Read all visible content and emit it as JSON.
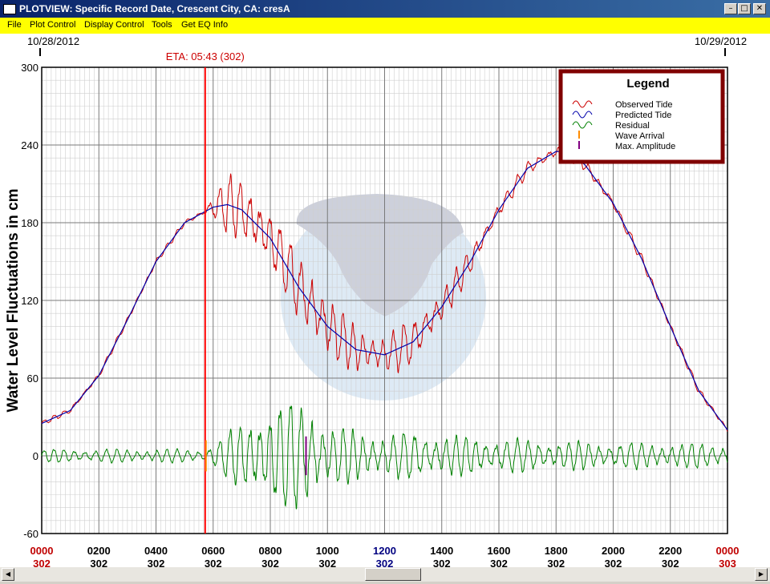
{
  "window": {
    "title": "PLOTVIEW: Specific Record Date, Crescent City, CA: cresA"
  },
  "menu": {
    "items": [
      "File",
      "Plot Control",
      "Display Control",
      "Tools",
      "Get EQ Info"
    ]
  },
  "chart_data": {
    "type": "line",
    "title": "",
    "ylabel": "Water Level Fluctuations in cm",
    "ylim": [
      -60,
      300
    ],
    "yticks": [
      -60,
      0,
      60,
      120,
      180,
      240,
      300
    ],
    "xlim": [
      0,
      24
    ],
    "xticks": [
      {
        "hour": 0,
        "time": "0000",
        "day": "302",
        "color": "#c00000"
      },
      {
        "hour": 2,
        "time": "0200",
        "day": "302",
        "color": "#000000"
      },
      {
        "hour": 4,
        "time": "0400",
        "day": "302",
        "color": "#000000"
      },
      {
        "hour": 6,
        "time": "0600",
        "day": "302",
        "color": "#000000"
      },
      {
        "hour": 8,
        "time": "0800",
        "day": "302",
        "color": "#000000"
      },
      {
        "hour": 10,
        "time": "1000",
        "day": "302",
        "color": "#000000"
      },
      {
        "hour": 12,
        "time": "1200",
        "day": "302",
        "color": "#000080"
      },
      {
        "hour": 14,
        "time": "1400",
        "day": "302",
        "color": "#000000"
      },
      {
        "hour": 16,
        "time": "1600",
        "day": "302",
        "color": "#000000"
      },
      {
        "hour": 18,
        "time": "1800",
        "day": "302",
        "color": "#000000"
      },
      {
        "hour": 20,
        "time": "2000",
        "day": "302",
        "color": "#000000"
      },
      {
        "hour": 22,
        "time": "2200",
        "day": "302",
        "color": "#000000"
      },
      {
        "hour": 24,
        "time": "0000",
        "day": "303",
        "color": "#c00000"
      }
    ],
    "date_start": "10/28/2012",
    "date_end": "10/29/2012",
    "eta": {
      "label": "ETA: 05:43 (302)",
      "hour": 5.72
    },
    "wave_arrival_hour": 5.72,
    "max_amplitude": {
      "hour": 9.25,
      "ymin": -15,
      "ymax": 15
    },
    "grid": true,
    "legend": {
      "title": "Legend",
      "position": "top-right",
      "entries": [
        {
          "label": "Observed Tide",
          "color": "#cc0000",
          "kind": "wave"
        },
        {
          "label": "Predicted Tide",
          "color": "#0000aa",
          "kind": "wave"
        },
        {
          "label": "Residual",
          "color": "#008000",
          "kind": "wave"
        },
        {
          "label": "Wave Arrival",
          "color": "#ff8c00",
          "kind": "tick"
        },
        {
          "label": "Max. Amplitude",
          "color": "#800080",
          "kind": "tick"
        }
      ]
    },
    "predicted_tide": {
      "name": "Predicted Tide",
      "x": [
        0,
        1,
        2,
        3,
        4,
        5,
        6,
        6.5,
        7,
        8,
        9,
        10,
        11,
        12,
        13,
        14,
        15,
        16,
        17,
        18,
        18.3,
        19,
        20,
        21,
        22,
        23,
        24
      ],
      "y": [
        25,
        35,
        62,
        105,
        150,
        180,
        192,
        194,
        190,
        168,
        130,
        100,
        82,
        78,
        88,
        115,
        150,
        190,
        222,
        235,
        235,
        225,
        195,
        152,
        100,
        50,
        20
      ]
    },
    "observed_envelope": {
      "name": "Observed Tide",
      "x": [
        0,
        5.7,
        6.5,
        7.5,
        8.5,
        9.5,
        10.5,
        11.5,
        12.5,
        13.5,
        14.5,
        15.5,
        17,
        20,
        22,
        24
      ],
      "amplitude": [
        2,
        2,
        22,
        25,
        22,
        28,
        20,
        14,
        17,
        15,
        12,
        7,
        5,
        4,
        3,
        2
      ]
    },
    "residual_envelope": {
      "name": "Residual",
      "x": [
        0,
        5.7,
        6.2,
        7.5,
        8.5,
        9.3,
        10,
        11,
        12,
        13,
        14,
        16,
        18,
        20,
        24
      ],
      "amplitude": [
        5,
        5,
        12,
        35,
        40,
        45,
        22,
        20,
        16,
        18,
        16,
        13,
        11,
        10,
        9
      ]
    },
    "oscillation_period_hours": 0.36
  }
}
